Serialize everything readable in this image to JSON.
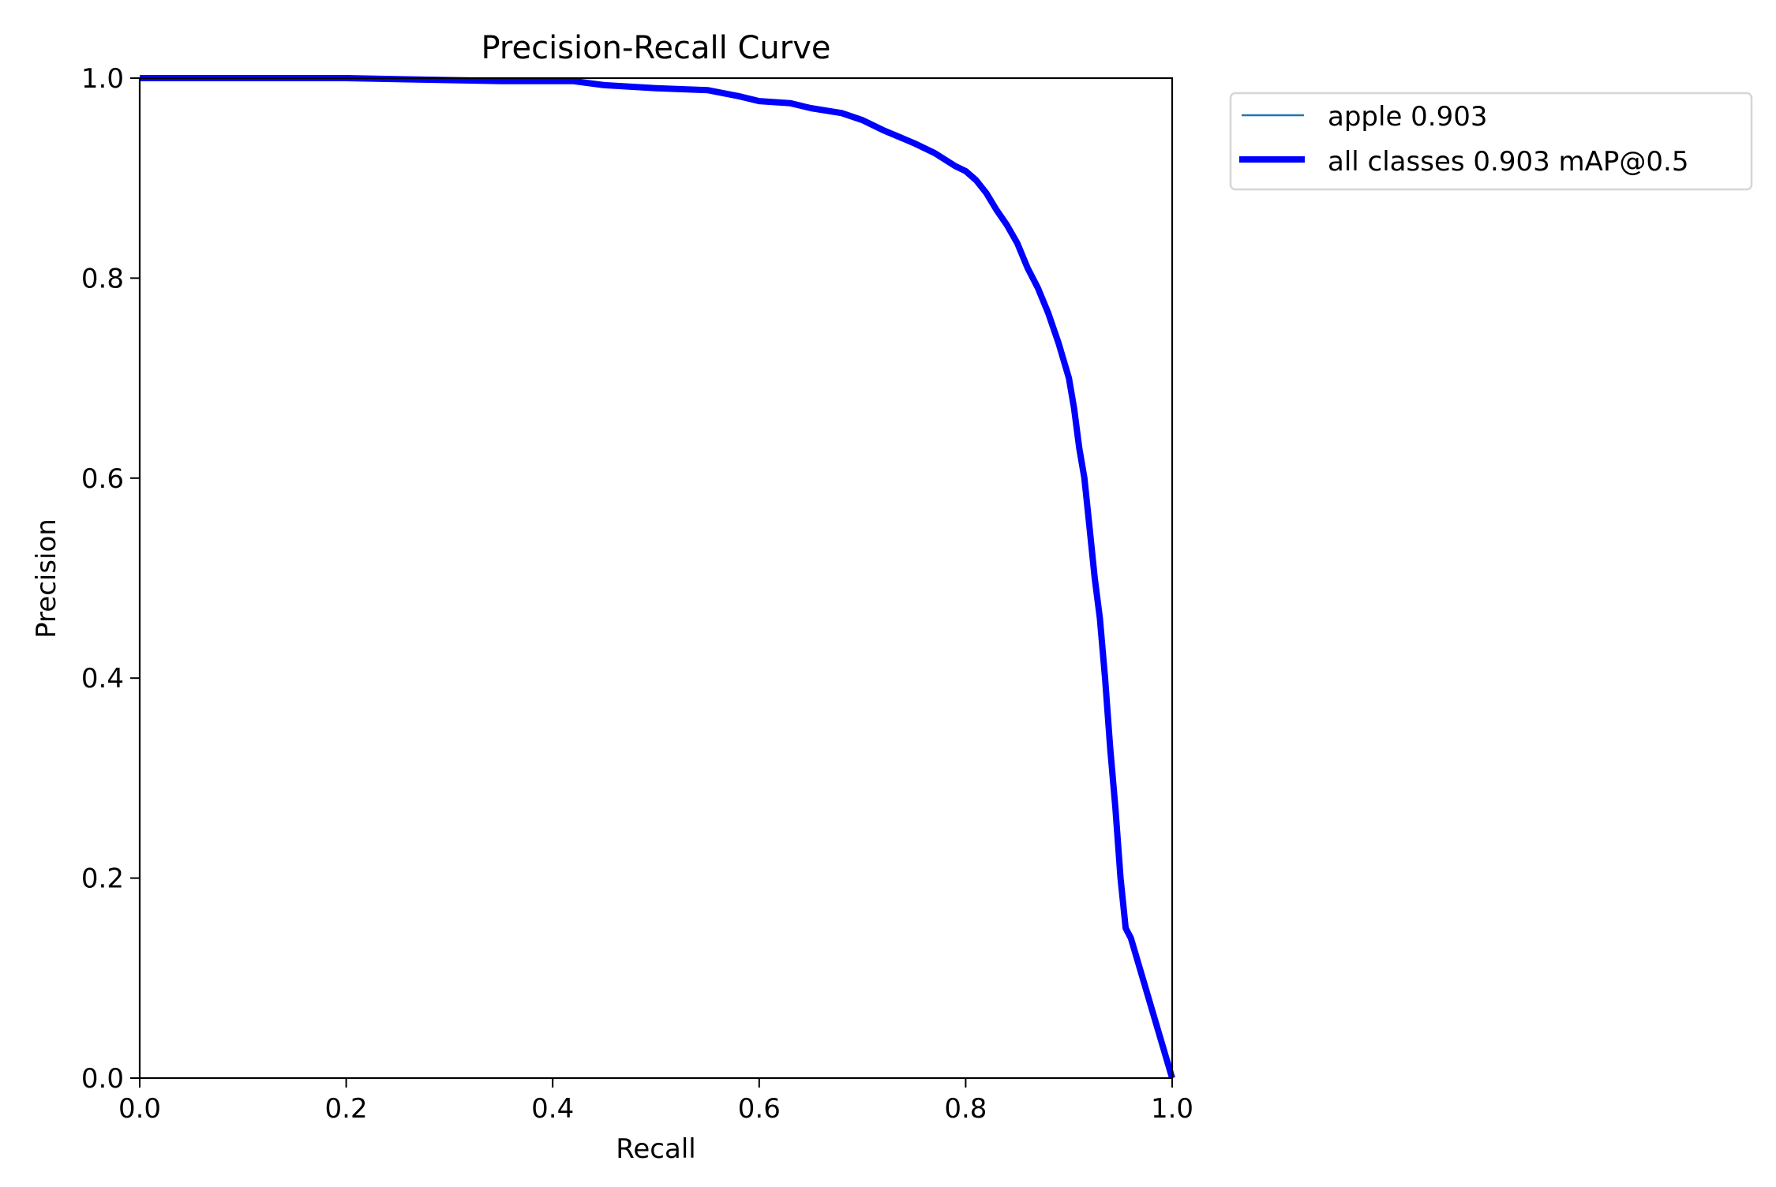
{
  "chart_data": {
    "type": "line",
    "title": "Precision-Recall Curve",
    "xlabel": "Recall",
    "ylabel": "Precision",
    "xlim": [
      0.0,
      1.0
    ],
    "ylim": [
      0.0,
      1.0
    ],
    "xticks": [
      "0.0",
      "0.2",
      "0.4",
      "0.6",
      "0.8",
      "1.0"
    ],
    "yticks": [
      "0.0",
      "0.2",
      "0.4",
      "0.6",
      "0.8",
      "1.0"
    ],
    "grid": false,
    "legend_position": "outside upper right",
    "series": [
      {
        "name": "apple 0.903",
        "color": "#1f77b4",
        "linewidth": "thin",
        "x": [
          0.0,
          0.1,
          0.2,
          0.3,
          0.35,
          0.42,
          0.45,
          0.5,
          0.55,
          0.58,
          0.6,
          0.63,
          0.65,
          0.68,
          0.7,
          0.72,
          0.75,
          0.77,
          0.79,
          0.8,
          0.81,
          0.82,
          0.83,
          0.84,
          0.85,
          0.86,
          0.87,
          0.88,
          0.89,
          0.9,
          0.905,
          0.91,
          0.915,
          0.92,
          0.925,
          0.93,
          0.935,
          0.94,
          0.945,
          0.95,
          0.955,
          0.96,
          1.0
        ],
        "y": [
          1.0,
          1.0,
          1.0,
          0.998,
          0.997,
          0.997,
          0.993,
          0.99,
          0.988,
          0.982,
          0.977,
          0.975,
          0.97,
          0.965,
          0.958,
          0.948,
          0.935,
          0.925,
          0.912,
          0.907,
          0.898,
          0.885,
          0.868,
          0.853,
          0.835,
          0.81,
          0.79,
          0.765,
          0.735,
          0.7,
          0.67,
          0.63,
          0.6,
          0.55,
          0.5,
          0.46,
          0.4,
          0.33,
          0.27,
          0.2,
          0.15,
          0.14,
          0.0
        ]
      },
      {
        "name": "all classes 0.903 mAP@0.5",
        "color": "#0000ff",
        "linewidth": "thick",
        "x": [
          0.0,
          0.1,
          0.2,
          0.3,
          0.35,
          0.42,
          0.45,
          0.5,
          0.55,
          0.58,
          0.6,
          0.63,
          0.65,
          0.68,
          0.7,
          0.72,
          0.75,
          0.77,
          0.79,
          0.8,
          0.81,
          0.82,
          0.83,
          0.84,
          0.85,
          0.86,
          0.87,
          0.88,
          0.89,
          0.9,
          0.905,
          0.91,
          0.915,
          0.92,
          0.925,
          0.93,
          0.935,
          0.94,
          0.945,
          0.95,
          0.955,
          0.96,
          1.0
        ],
        "y": [
          1.0,
          1.0,
          1.0,
          0.998,
          0.997,
          0.997,
          0.993,
          0.99,
          0.988,
          0.982,
          0.977,
          0.975,
          0.97,
          0.965,
          0.958,
          0.948,
          0.935,
          0.925,
          0.912,
          0.907,
          0.898,
          0.885,
          0.868,
          0.853,
          0.835,
          0.81,
          0.79,
          0.765,
          0.735,
          0.7,
          0.67,
          0.63,
          0.6,
          0.55,
          0.5,
          0.46,
          0.4,
          0.33,
          0.27,
          0.2,
          0.15,
          0.14,
          0.0
        ]
      }
    ]
  },
  "legend": {
    "items": [
      {
        "label": "apple 0.903",
        "color": "#1f77b4"
      },
      {
        "label": "all classes 0.903 mAP@0.5",
        "color": "#0000ff"
      }
    ]
  }
}
